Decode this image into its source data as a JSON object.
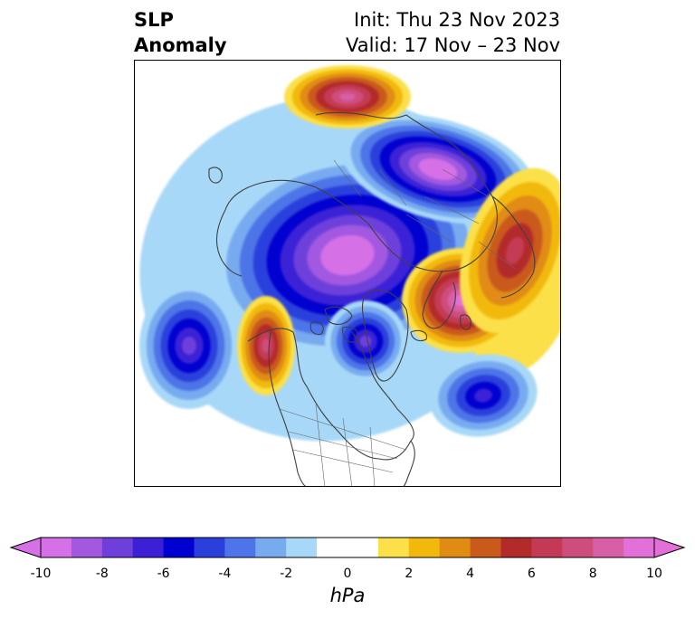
{
  "title": {
    "left_line1": "SLP",
    "left_line2": "Anomaly",
    "right_line1": "Init: Thu 23 Nov 2023",
    "right_line2": "Valid: 17 Nov – 23 Nov"
  },
  "colorbar": {
    "unit_label": "hPa",
    "ticks": [
      "-10",
      "-8",
      "-6",
      "-4",
      "-2",
      "0",
      "2",
      "4",
      "6",
      "8",
      "10"
    ],
    "bins": [
      {
        "range": [
          -10,
          -9
        ],
        "color": "#d670e6"
      },
      {
        "range": [
          -9,
          -8
        ],
        "color": "#a259e0"
      },
      {
        "range": [
          -8,
          -7
        ],
        "color": "#6e3fdb"
      },
      {
        "range": [
          -7,
          -6
        ],
        "color": "#3b20d6"
      },
      {
        "range": [
          -6,
          -5
        ],
        "color": "#0000d0"
      },
      {
        "range": [
          -5,
          -4
        ],
        "color": "#2a3fdc"
      },
      {
        "range": [
          -4,
          -3
        ],
        "color": "#4d74e8"
      },
      {
        "range": [
          -3,
          -2
        ],
        "color": "#78aaf0"
      },
      {
        "range": [
          -2,
          -1
        ],
        "color": "#a8d8f8"
      },
      {
        "range": [
          -1,
          1
        ],
        "color": "#ffffff"
      },
      {
        "range": [
          1,
          2
        ],
        "color": "#fbe04a"
      },
      {
        "range": [
          2,
          3
        ],
        "color": "#f2b90c"
      },
      {
        "range": [
          3,
          4
        ],
        "color": "#e08c12"
      },
      {
        "range": [
          4,
          5
        ],
        "color": "#c95a1c"
      },
      {
        "range": [
          5,
          6
        ],
        "color": "#b22a2a"
      },
      {
        "range": [
          6,
          7
        ],
        "color": "#c43a55"
      },
      {
        "range": [
          7,
          8
        ],
        "color": "#cf4d7c"
      },
      {
        "range": [
          8,
          9
        ],
        "color": "#d65fa6"
      },
      {
        "range": [
          9,
          10
        ],
        "color": "#e36fd8"
      }
    ],
    "extend_low_color": "#d670e6",
    "extend_high_color": "#e36fd8"
  },
  "anomalies": [
    {
      "id": "arctic-low",
      "sign": "negative",
      "peak": -10
    },
    {
      "id": "siberia-low",
      "sign": "negative",
      "peak": -10
    },
    {
      "id": "east-pacific-low",
      "sign": "negative",
      "peak": -7
    },
    {
      "id": "atlantic-low",
      "sign": "negative",
      "peak": -6
    },
    {
      "id": "hudson-bay-low",
      "sign": "negative",
      "peak": -7
    },
    {
      "id": "europe-high",
      "sign": "positive",
      "peak": 9
    },
    {
      "id": "alaska-high",
      "sign": "positive",
      "peak": 7
    },
    {
      "id": "ural-high",
      "sign": "positive",
      "peak": 8
    },
    {
      "id": "central-asia-high",
      "sign": "positive",
      "peak": 6
    }
  ]
}
